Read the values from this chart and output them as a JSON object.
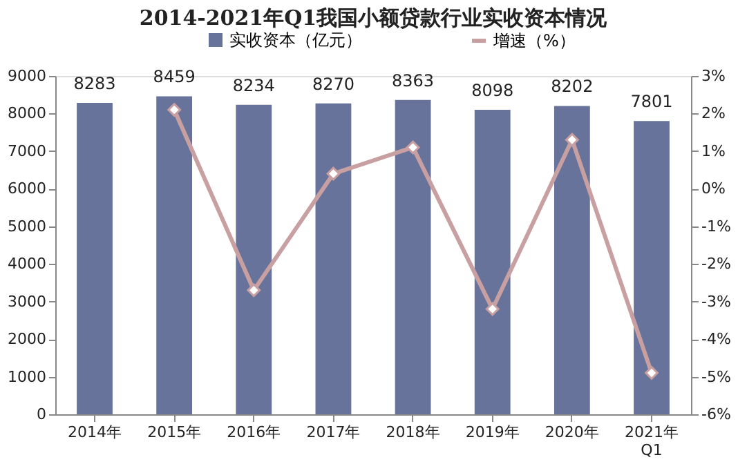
{
  "chart_data": {
    "type": "bar",
    "title": "2014-2021年Q1我国小额贷款行业实收资本情况",
    "categories": [
      "2014年",
      "2015年",
      "2016年",
      "2017年",
      "2018年",
      "2019年",
      "2020年",
      "2021年\nQ1"
    ],
    "series": [
      {
        "name": "实收资本（亿元）",
        "color": "#67739b",
        "values": [
          8283,
          8459,
          8234,
          8270,
          8363,
          8098,
          8202,
          7801
        ],
        "value_labels": [
          "8283",
          "8459",
          "8234",
          "8270",
          "8363",
          "8098",
          "8202",
          "7801"
        ]
      },
      {
        "name": "增速（%）",
        "type": "line",
        "axis": "y2",
        "color": "#c9a0a2",
        "marker": "diamond",
        "values": [
          null,
          2.1,
          -2.7,
          0.4,
          1.1,
          -3.2,
          1.3,
          -4.9
        ]
      }
    ],
    "ylim": [
      0,
      9000
    ],
    "yticks": [
      0,
      1000,
      2000,
      3000,
      4000,
      5000,
      6000,
      7000,
      8000,
      9000
    ],
    "y2lim": [
      -6,
      3
    ],
    "y2ticks": [
      {
        "value": 3,
        "label": "3%"
      },
      {
        "value": 2,
        "label": "2%"
      },
      {
        "value": 1,
        "label": "1%"
      },
      {
        "value": 0,
        "label": "0%"
      },
      {
        "value": -1,
        "label": "-1%"
      },
      {
        "value": -2,
        "label": "-2%"
      },
      {
        "value": -3,
        "label": "-3%"
      },
      {
        "value": -4,
        "label": "-4%"
      },
      {
        "value": -5,
        "label": "-5%"
      },
      {
        "value": -6,
        "label": "-6%"
      }
    ],
    "grid": false,
    "legend": "top"
  }
}
